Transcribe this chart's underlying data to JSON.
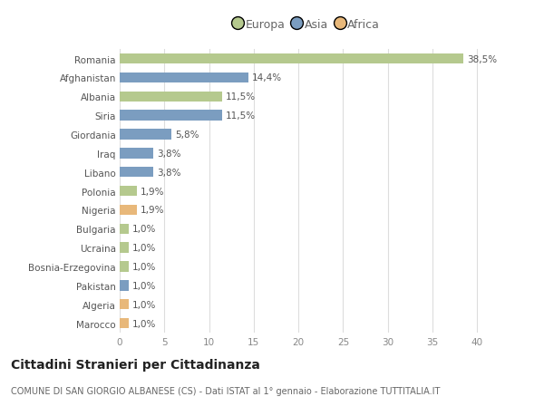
{
  "categories": [
    "Romania",
    "Afghanistan",
    "Albania",
    "Siria",
    "Giordania",
    "Iraq",
    "Libano",
    "Polonia",
    "Nigeria",
    "Bulgaria",
    "Ucraina",
    "Bosnia-Erzegovina",
    "Pakistan",
    "Algeria",
    "Marocco"
  ],
  "values": [
    38.5,
    14.4,
    11.5,
    11.5,
    5.8,
    3.8,
    3.8,
    1.9,
    1.9,
    1.0,
    1.0,
    1.0,
    1.0,
    1.0,
    1.0
  ],
  "labels": [
    "38,5%",
    "14,4%",
    "11,5%",
    "11,5%",
    "5,8%",
    "3,8%",
    "3,8%",
    "1,9%",
    "1,9%",
    "1,0%",
    "1,0%",
    "1,0%",
    "1,0%",
    "1,0%",
    "1,0%"
  ],
  "continents": [
    "Europa",
    "Asia",
    "Europa",
    "Asia",
    "Asia",
    "Asia",
    "Asia",
    "Europa",
    "Africa",
    "Europa",
    "Europa",
    "Europa",
    "Asia",
    "Africa",
    "Africa"
  ],
  "colors": {
    "Europa": "#b5c98e",
    "Asia": "#7b9dc0",
    "Africa": "#e8b87a"
  },
  "xlim": [
    0,
    42
  ],
  "xticks": [
    0,
    5,
    10,
    15,
    20,
    25,
    30,
    35,
    40
  ],
  "title": "Cittadini Stranieri per Cittadinanza",
  "subtitle": "COMUNE DI SAN GIORGIO ALBANESE (CS) - Dati ISTAT al 1° gennaio - Elaborazione TUTTITALIA.IT",
  "background_color": "#ffffff",
  "bar_height": 0.55,
  "label_fontsize": 7.5,
  "tick_fontsize": 7.5,
  "title_fontsize": 10,
  "subtitle_fontsize": 7,
  "legend_order": [
    "Europa",
    "Asia",
    "Africa"
  ]
}
